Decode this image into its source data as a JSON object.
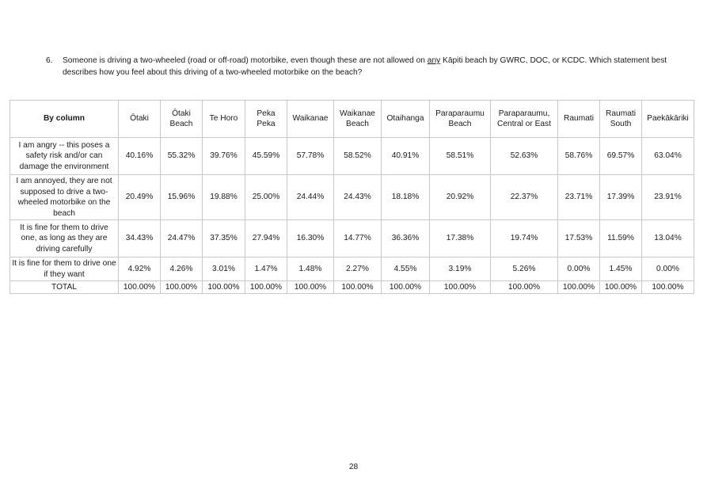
{
  "question": {
    "number": "6.",
    "text_before": "Someone is driving a two-wheeled (road or off-road) motorbike, even though these are not allowed on ",
    "text_underlined": "any",
    "text_after": " Kāpiti beach by GWRC, DOC, or KCDC.  Which statement best describes how you feel about this driving of a two-wheeled motorbike on the beach?"
  },
  "table": {
    "corner_label": "By column",
    "columns": [
      "Ōtaki",
      "Ōtaki Beach",
      "Te Horo",
      "Peka Peka",
      "Waikanae",
      "Waikanae Beach",
      "Otaihanga",
      "Paraparaumu Beach",
      "Paraparaumu, Central or East",
      "Raumati",
      "Raumati South",
      "Paekākāriki"
    ],
    "rows": [
      {
        "label": "I am angry -- this poses a safety risk and/or can damage the environment",
        "values": [
          "40.16%",
          "55.32%",
          "39.76%",
          "45.59%",
          "57.78%",
          "58.52%",
          "40.91%",
          "58.51%",
          "52.63%",
          "58.76%",
          "69.57%",
          "63.04%"
        ]
      },
      {
        "label": "I am annoyed, they are not supposed to drive a two-wheeled motorbike on the beach",
        "values": [
          "20.49%",
          "15.96%",
          "19.88%",
          "25.00%",
          "24.44%",
          "24.43%",
          "18.18%",
          "20.92%",
          "22.37%",
          "23.71%",
          "17.39%",
          "23.91%"
        ]
      },
      {
        "label": "It is fine for them to drive one, as long as they are driving carefully",
        "values": [
          "34.43%",
          "24.47%",
          "37.35%",
          "27.94%",
          "16.30%",
          "14.77%",
          "36.36%",
          "17.38%",
          "19.74%",
          "17.53%",
          "11.59%",
          "13.04%"
        ]
      },
      {
        "label": "It is fine for them to drive one if they want",
        "values": [
          "4.92%",
          "4.26%",
          "3.01%",
          "1.47%",
          "1.48%",
          "2.27%",
          "4.55%",
          "3.19%",
          "5.26%",
          "0.00%",
          "1.45%",
          "0.00%"
        ]
      },
      {
        "label": "TOTAL",
        "values": [
          "100.00%",
          "100.00%",
          "100.00%",
          "100.00%",
          "100.00%",
          "100.00%",
          "100.00%",
          "100.00%",
          "100.00%",
          "100.00%",
          "100.00%",
          "100.00%"
        ]
      }
    ]
  },
  "page_number": "28"
}
